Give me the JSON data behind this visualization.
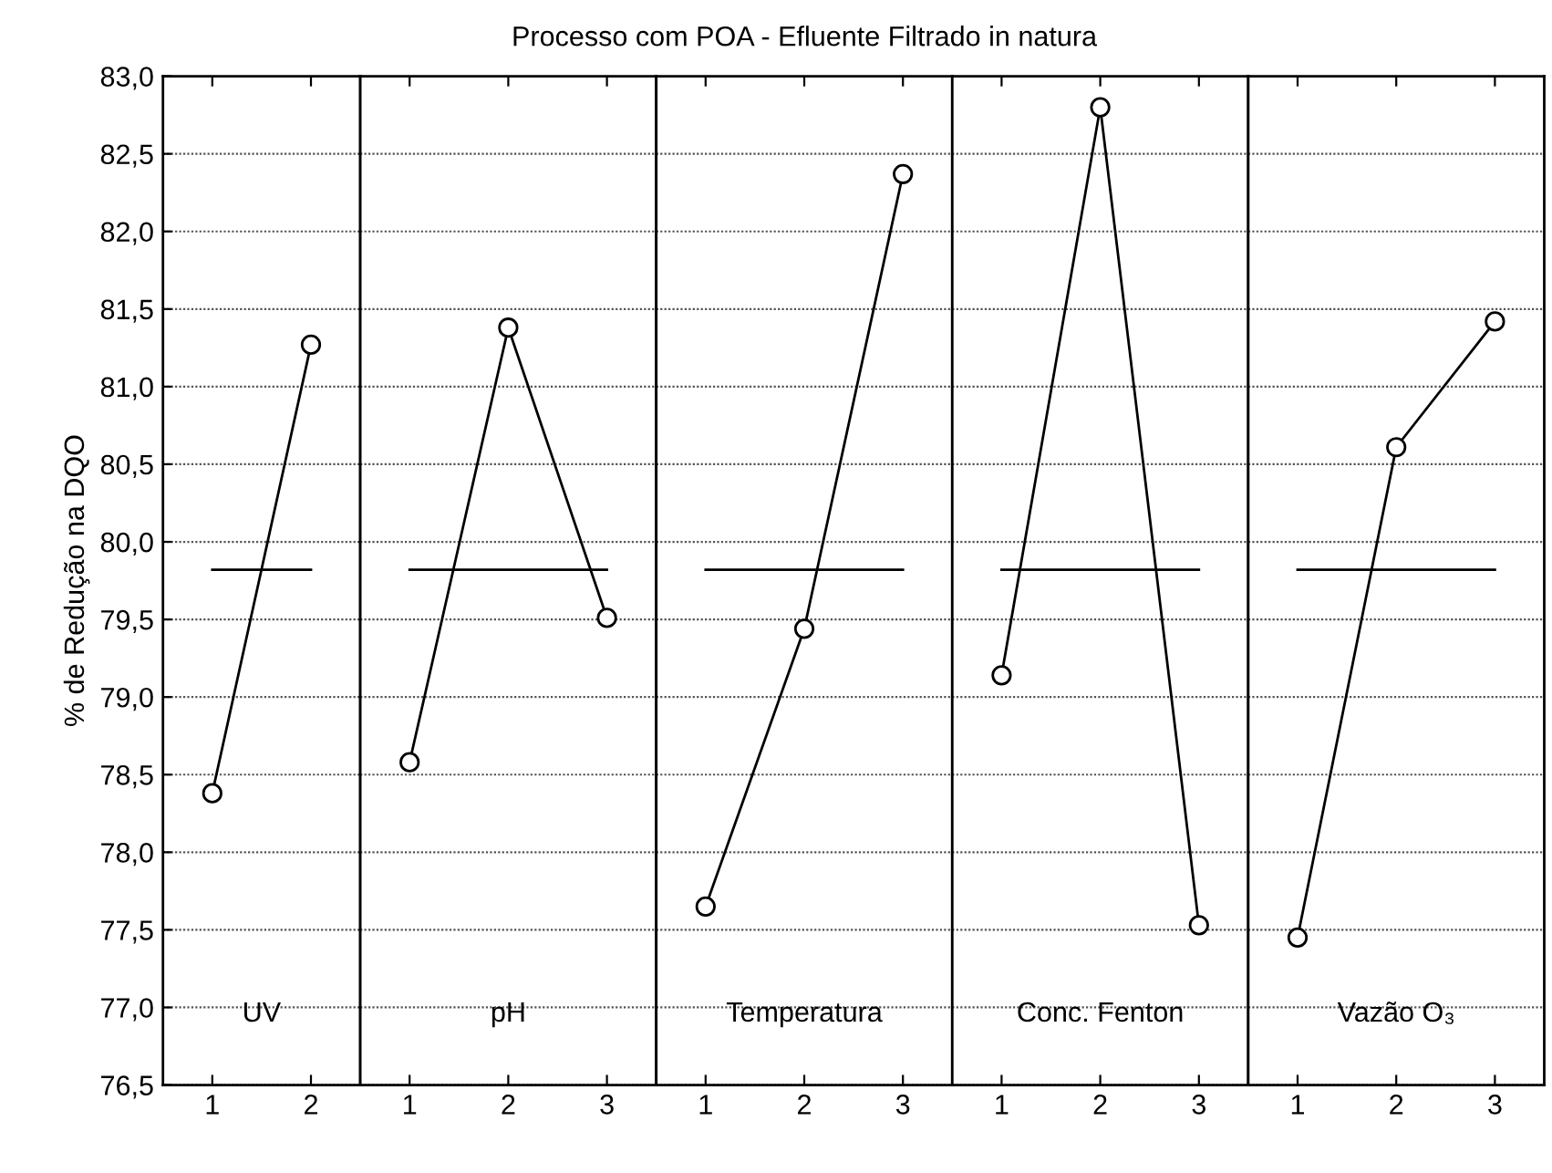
{
  "chart_data": [
    {
      "type": "line",
      "ylabel": "% de Redução na DQO",
      "categories": [
        "1",
        "2"
      ],
      "series": [
        {
          "color": "#000000",
          "values": [
            78.38,
            81.27
          ]
        }
      ],
      "annotations": [
        "UV"
      ],
      "ref_lines": [
        {
          "axis": "y",
          "value": 79.82,
          "color": "#000000"
        }
      ],
      "ylim": [
        76.5,
        83.0
      ],
      "yticks": [
        {
          "value": 76.5,
          "label": "76,5"
        },
        {
          "value": 77.0,
          "label": "77,0"
        },
        {
          "value": 77.5,
          "label": "77,5"
        },
        {
          "value": 78.0,
          "label": "78,0"
        },
        {
          "value": 78.5,
          "label": "78,5"
        },
        {
          "value": 79.0,
          "label": "79,0"
        },
        {
          "value": 79.5,
          "label": "79,5"
        },
        {
          "value": 80.0,
          "label": "80,0"
        },
        {
          "value": 80.5,
          "label": "80,5"
        },
        {
          "value": 81.0,
          "label": "81,0"
        },
        {
          "value": 81.5,
          "label": "81,5"
        },
        {
          "value": 82.0,
          "label": "82,0"
        },
        {
          "value": 82.5,
          "label": "82,5"
        },
        {
          "value": 83.0,
          "label": "83,0"
        }
      ],
      "grid": "y",
      "marker": "circle",
      "line_style": "solid"
    },
    {
      "type": "line",
      "categories": [
        "1",
        "2",
        "3"
      ],
      "series": [
        {
          "color": "#000000",
          "values": [
            78.58,
            81.38,
            79.51
          ]
        }
      ],
      "annotations": [
        "pH"
      ],
      "ref_lines": [
        {
          "axis": "y",
          "value": 79.82,
          "color": "#000000"
        }
      ],
      "ylim": [
        76.5,
        83.0
      ],
      "tick_labels": "x",
      "grid": "y",
      "marker": "circle",
      "line_style": "solid"
    },
    {
      "type": "line",
      "categories": [
        "1",
        "2",
        "3"
      ],
      "series": [
        {
          "color": "#000000",
          "values": [
            77.65,
            79.44,
            82.37
          ]
        }
      ],
      "title": "Processo com POA - Efluente Filtrado in natura",
      "annotations": [
        "Temperatura"
      ],
      "ref_lines": [
        {
          "axis": "y",
          "value": 79.82,
          "color": "#000000"
        }
      ],
      "ylim": [
        76.5,
        83.0
      ],
      "tick_labels": "x",
      "grid": "y",
      "marker": "circle",
      "line_style": "solid"
    },
    {
      "type": "line",
      "categories": [
        "1",
        "2",
        "3"
      ],
      "series": [
        {
          "color": "#000000",
          "values": [
            79.14,
            82.8,
            77.53
          ]
        }
      ],
      "annotations": [
        "Conc. Fenton"
      ],
      "ref_lines": [
        {
          "axis": "y",
          "value": 79.82,
          "color": "#000000"
        }
      ],
      "ylim": [
        76.5,
        83.0
      ],
      "tick_labels": "x",
      "grid": "y",
      "marker": "circle",
      "line_style": "solid"
    },
    {
      "type": "line",
      "categories": [
        "1",
        "2",
        "3"
      ],
      "series": [
        {
          "color": "#000000",
          "values": [
            77.45,
            80.61,
            81.42
          ]
        }
      ],
      "annotations": [
        "Vazão O₃"
      ],
      "ref_lines": [
        {
          "axis": "y",
          "value": 79.82,
          "color": "#000000"
        }
      ],
      "ylim": [
        76.5,
        83.0
      ],
      "tick_labels": "x",
      "grid": "y",
      "marker": "circle",
      "line_style": "solid"
    }
  ]
}
